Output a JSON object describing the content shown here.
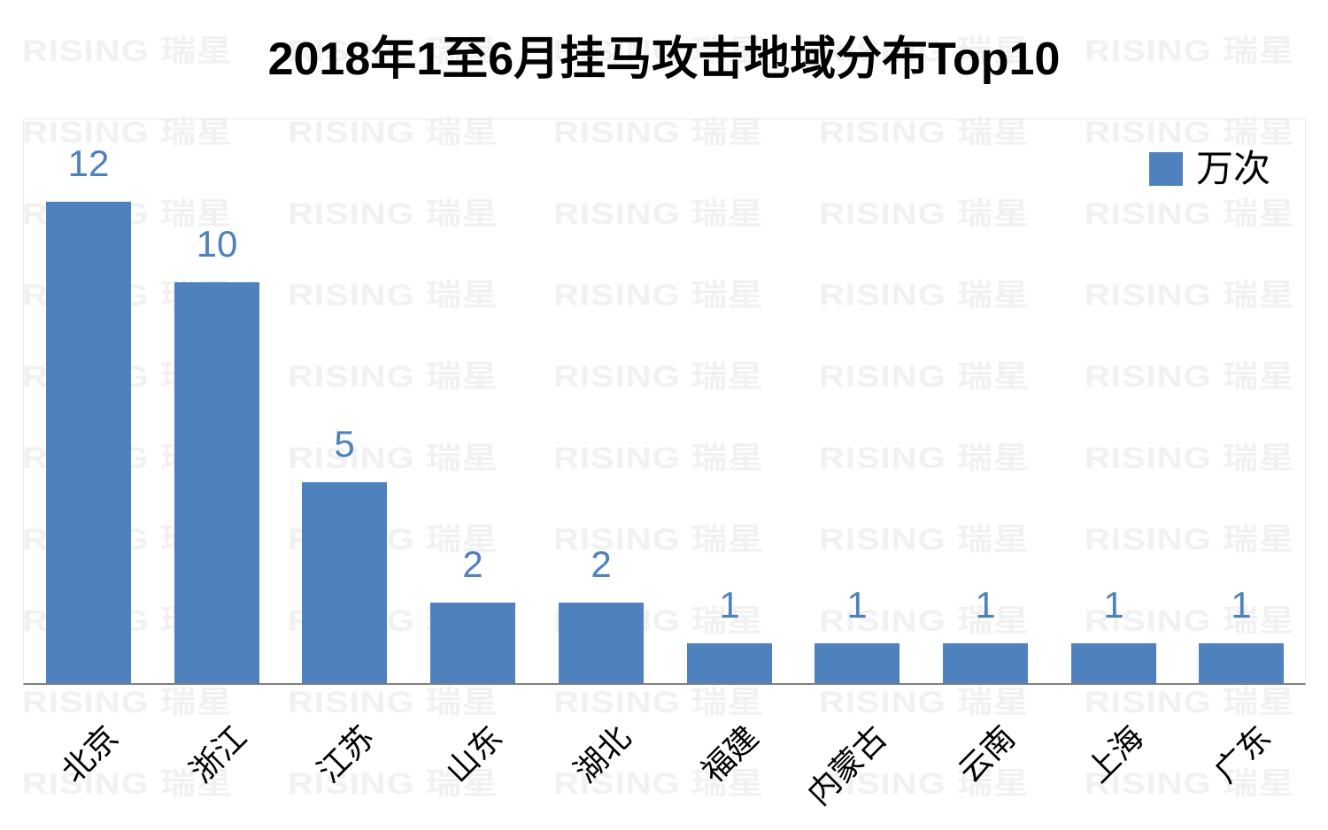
{
  "title": "2018年1至6月挂马攻击地域分布Top10",
  "legend": {
    "label": "万次",
    "swatch_color": "#4E81BD"
  },
  "watermark": {
    "text": "RISING 瑞星",
    "color": "#F1F1F1"
  },
  "axis": {
    "baseline_color": "#7F7F7F",
    "plot_border_color": "#E9E9E9"
  },
  "chart_data": {
    "type": "bar",
    "title": "2018年1至6月挂马攻击地域分布Top10",
    "categories": [
      "北京",
      "浙江",
      "江苏",
      "山东",
      "湖北",
      "福建",
      "内蒙古",
      "云南",
      "上海",
      "广东"
    ],
    "values": [
      12,
      10,
      5,
      2,
      2,
      1,
      1,
      1,
      1,
      1
    ],
    "series_name": "万次",
    "unit": "万次",
    "xlabel": "",
    "ylabel": "",
    "ylim": [
      0,
      14
    ],
    "grid": false,
    "data_labels": true,
    "legend_position": "top-right",
    "bar_color": "#4E81BD",
    "data_label_color": "#4E81BD",
    "x_tick_rotation": 45
  }
}
